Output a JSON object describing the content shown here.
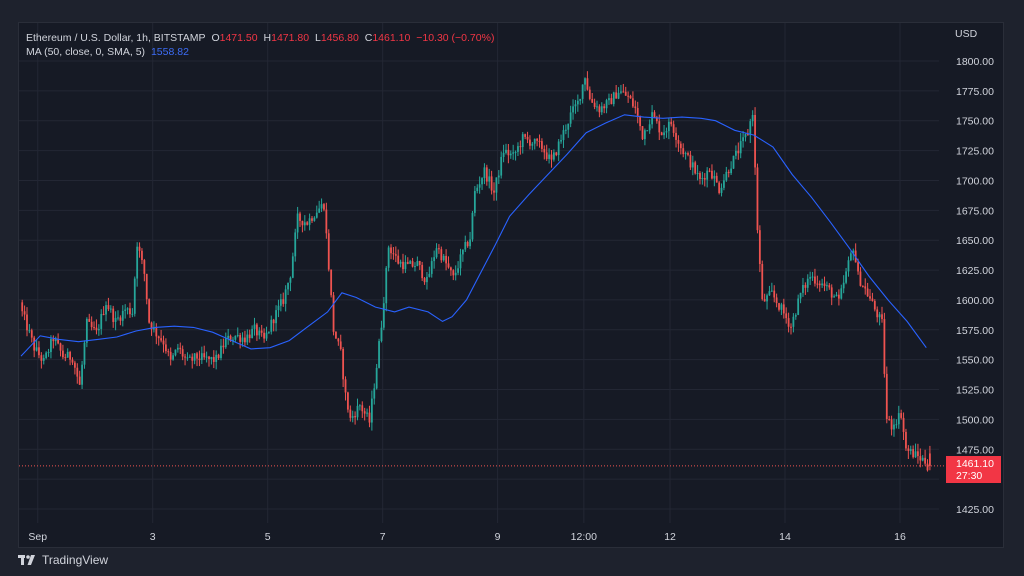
{
  "legend": {
    "symbol": "Ethereum / U.S. Dollar, 1h, BITSTAMP",
    "o_label": "O",
    "o_value": "1471.50",
    "h_label": "H",
    "h_value": "1471.80",
    "l_label": "L",
    "l_value": "1456.80",
    "c_label": "C",
    "c_value": "1461.10",
    "change": "−10.30 (−0.70%)",
    "ma_label": "MA (50, close, 0, SMA, 5)",
    "ma_value": "1558.82"
  },
  "axis": {
    "currency": "USD",
    "price_tag": "1461.10",
    "countdown": "27:30"
  },
  "footer": {
    "brand": "TradingView"
  },
  "colors": {
    "up": "#26a69a",
    "down": "#ef5350",
    "ma": "#2962ff",
    "grid": "#232734",
    "background": "#161a25"
  },
  "chart_data": {
    "type": "candlestick",
    "title": "Ethereum / U.S. Dollar, 1h, BITSTAMP",
    "ylabel": "USD",
    "ylim": [
      1410,
      1815
    ],
    "y_ticks": [
      1425,
      1450,
      1475,
      1500,
      1525,
      1550,
      1575,
      1600,
      1625,
      1650,
      1675,
      1700,
      1725,
      1750,
      1775,
      1800
    ],
    "y_tick_labels": [
      "1425.00",
      "1450.00",
      "1475.00",
      "1500.00",
      "1525.00",
      "1550.00",
      "1575.00",
      "1600.00",
      "1625.00",
      "1650.00",
      "1675.00",
      "1700.00",
      "1725.00",
      "1750.00",
      "1775.00",
      "1800.00"
    ],
    "x_ticks": [
      {
        "label": "Sep",
        "t": 7
      },
      {
        "label": "3",
        "t": 55
      },
      {
        "label": "5",
        "t": 103
      },
      {
        "label": "7",
        "t": 151
      },
      {
        "label": "9",
        "t": 199
      },
      {
        "label": "12:00",
        "t": 235
      },
      {
        "label": "12",
        "t": 271
      },
      {
        "label": "14",
        "t": 319
      },
      {
        "label": "16",
        "t": 367
      }
    ],
    "last_price": 1461.1,
    "close_path": [
      [
        0,
        1595
      ],
      [
        6,
        1560
      ],
      [
        10,
        1548
      ],
      [
        14,
        1568
      ],
      [
        18,
        1553
      ],
      [
        22,
        1552
      ],
      [
        25,
        1528
      ],
      [
        28,
        1580
      ],
      [
        32,
        1572
      ],
      [
        36,
        1598
      ],
      [
        40,
        1582
      ],
      [
        44,
        1592
      ],
      [
        47,
        1590
      ],
      [
        49,
        1648
      ],
      [
        52,
        1622
      ],
      [
        54,
        1582
      ],
      [
        57,
        1572
      ],
      [
        60,
        1565
      ],
      [
        63,
        1548
      ],
      [
        66,
        1560
      ],
      [
        70,
        1548
      ],
      [
        74,
        1552
      ],
      [
        78,
        1550
      ],
      [
        82,
        1550
      ],
      [
        86,
        1566
      ],
      [
        90,
        1570
      ],
      [
        94,
        1568
      ],
      [
        98,
        1575
      ],
      [
        102,
        1566
      ],
      [
        106,
        1585
      ],
      [
        110,
        1600
      ],
      [
        113,
        1622
      ],
      [
        116,
        1668
      ],
      [
        120,
        1665
      ],
      [
        124,
        1675
      ],
      [
        127,
        1680
      ],
      [
        129,
        1628
      ],
      [
        131,
        1575
      ],
      [
        134,
        1555
      ],
      [
        136,
        1520
      ],
      [
        138,
        1500
      ],
      [
        142,
        1512
      ],
      [
        146,
        1498
      ],
      [
        149,
        1545
      ],
      [
        151,
        1580
      ],
      [
        154,
        1645
      ],
      [
        158,
        1632
      ],
      [
        162,
        1628
      ],
      [
        166,
        1630
      ],
      [
        170,
        1615
      ],
      [
        174,
        1645
      ],
      [
        178,
        1630
      ],
      [
        181,
        1618
      ],
      [
        185,
        1640
      ],
      [
        188,
        1652
      ],
      [
        190,
        1690
      ],
      [
        194,
        1708
      ],
      [
        198,
        1690
      ],
      [
        202,
        1725
      ],
      [
        206,
        1720
      ],
      [
        210,
        1735
      ],
      [
        214,
        1732
      ],
      [
        218,
        1728
      ],
      [
        222,
        1715
      ],
      [
        226,
        1735
      ],
      [
        230,
        1755
      ],
      [
        233,
        1765
      ],
      [
        236,
        1788
      ],
      [
        238,
        1768
      ],
      [
        242,
        1760
      ],
      [
        246,
        1765
      ],
      [
        250,
        1775
      ],
      [
        254,
        1770
      ],
      [
        257,
        1760
      ],
      [
        260,
        1738
      ],
      [
        264,
        1755
      ],
      [
        268,
        1740
      ],
      [
        272,
        1748
      ],
      [
        276,
        1728
      ],
      [
        280,
        1715
      ],
      [
        284,
        1700
      ],
      [
        288,
        1710
      ],
      [
        292,
        1693
      ],
      [
        296,
        1710
      ],
      [
        300,
        1725
      ],
      [
        304,
        1740
      ],
      [
        306,
        1758
      ],
      [
        308,
        1660
      ],
      [
        310,
        1598
      ],
      [
        314,
        1605
      ],
      [
        318,
        1592
      ],
      [
        322,
        1578
      ],
      [
        326,
        1605
      ],
      [
        330,
        1620
      ],
      [
        334,
        1615
      ],
      [
        338,
        1608
      ],
      [
        342,
        1598
      ],
      [
        346,
        1630
      ],
      [
        348,
        1645
      ],
      [
        350,
        1620
      ],
      [
        354,
        1605
      ],
      [
        358,
        1588
      ],
      [
        360,
        1580
      ],
      [
        362,
        1500
      ],
      [
        364,
        1495
      ],
      [
        368,
        1505
      ],
      [
        370,
        1475
      ],
      [
        374,
        1470
      ],
      [
        378,
        1465
      ],
      [
        379,
        1461.1
      ]
    ],
    "ma_path": [
      [
        0,
        1553
      ],
      [
        8,
        1570
      ],
      [
        16,
        1567
      ],
      [
        24,
        1565
      ],
      [
        32,
        1567
      ],
      [
        40,
        1569
      ],
      [
        48,
        1574
      ],
      [
        56,
        1577
      ],
      [
        64,
        1578
      ],
      [
        72,
        1577
      ],
      [
        80,
        1573
      ],
      [
        88,
        1566
      ],
      [
        96,
        1559
      ],
      [
        104,
        1560
      ],
      [
        112,
        1566
      ],
      [
        120,
        1578
      ],
      [
        128,
        1590
      ],
      [
        134,
        1606
      ],
      [
        140,
        1602
      ],
      [
        148,
        1594
      ],
      [
        156,
        1590
      ],
      [
        162,
        1594
      ],
      [
        170,
        1590
      ],
      [
        176,
        1582
      ],
      [
        180,
        1586
      ],
      [
        186,
        1600
      ],
      [
        192,
        1623
      ],
      [
        198,
        1646
      ],
      [
        204,
        1670
      ],
      [
        212,
        1688
      ],
      [
        220,
        1705
      ],
      [
        228,
        1722
      ],
      [
        236,
        1740
      ],
      [
        244,
        1748
      ],
      [
        252,
        1755
      ],
      [
        260,
        1753
      ],
      [
        268,
        1752
      ],
      [
        276,
        1753
      ],
      [
        284,
        1752
      ],
      [
        290,
        1750
      ],
      [
        298,
        1742
      ],
      [
        306,
        1738
      ],
      [
        314,
        1728
      ],
      [
        322,
        1705
      ],
      [
        330,
        1686
      ],
      [
        338,
        1665
      ],
      [
        346,
        1643
      ],
      [
        354,
        1620
      ],
      [
        362,
        1600
      ],
      [
        370,
        1582
      ],
      [
        378,
        1560
      ]
    ],
    "n_candles": 380,
    "grid": true
  }
}
